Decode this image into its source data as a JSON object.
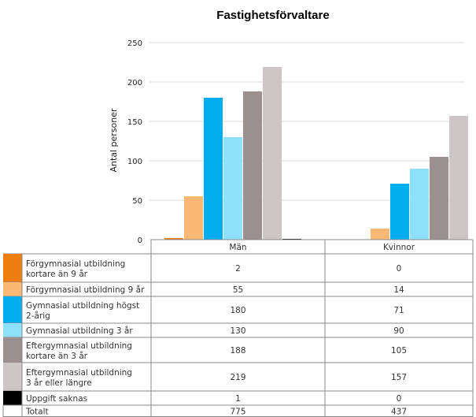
{
  "chart_data": {
    "type": "bar",
    "title": "Fastighetsförvaltare",
    "ylabel": "Antal personer",
    "xlabel": "",
    "ylim": [
      0,
      250
    ],
    "yticks": [
      0,
      50,
      100,
      150,
      200,
      250
    ],
    "categories": [
      "Män",
      "Kvinnor"
    ],
    "series": [
      {
        "name": "Förgymnasial utbildning kortare än 9 år",
        "label_lines": [
          "Förgymnasial utbildning",
          "kortare än 9 år"
        ],
        "color": "#ed7d0e",
        "values": [
          2,
          0
        ]
      },
      {
        "name": "Förgymnasial utbildning 9 år",
        "label_lines": [
          "Förgymnasial utbildning 9 år"
        ],
        "color": "#fbb874",
        "values": [
          55,
          14
        ]
      },
      {
        "name": "Gymnasial utbildning högst 2-årig",
        "label_lines": [
          "Gymnasial utbildning högst",
          "2-årig"
        ],
        "color": "#00aeef",
        "values": [
          180,
          71
        ]
      },
      {
        "name": "Gymnasial utbildning 3 år",
        "label_lines": [
          "Gymnasial utbildning 3 år"
        ],
        "color": "#8ee0fb",
        "values": [
          130,
          90
        ]
      },
      {
        "name": "Eftergymnasial utbildning kortare än 3 år",
        "label_lines": [
          "Eftergymnasial utbildning",
          "kortare än 3 år"
        ],
        "color": "#9b8f8f",
        "values": [
          188,
          105
        ]
      },
      {
        "name": "Eftergymnasial utbildning 3 år eller längre",
        "label_lines": [
          "Eftergymnasial utbildning",
          "3 år eller längre"
        ],
        "color": "#ccc6c6",
        "values": [
          219,
          157
        ]
      },
      {
        "name": "Uppgift saknas",
        "label_lines": [
          "Uppgift saknas"
        ],
        "color": "#000000",
        "values": [
          1,
          0
        ]
      }
    ],
    "total": {
      "label": "Totalt",
      "values": [
        775,
        437
      ]
    },
    "grid": true,
    "legend": "table-below"
  }
}
